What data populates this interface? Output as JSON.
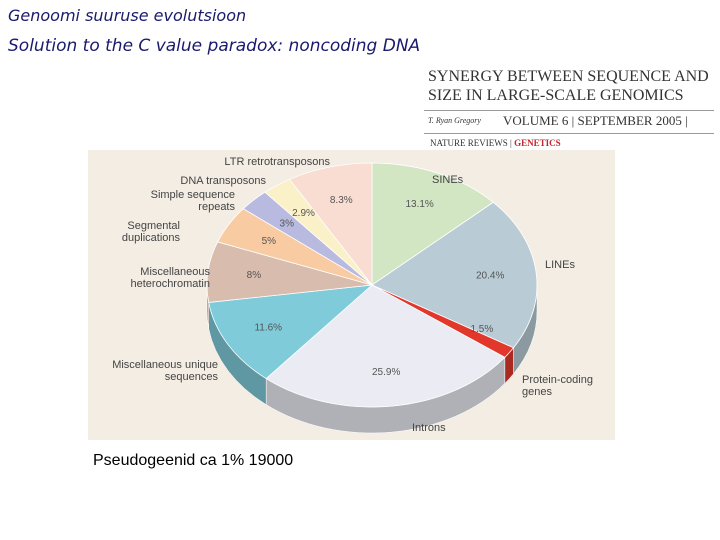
{
  "slide": {
    "title": "Genoomi suuruse evolutsioon",
    "subtitle": "Solution to the C value paradox: noncoding DNA",
    "caption": "Pseudogeenid ca 1% 19000"
  },
  "journal_header": {
    "title_line_1": "SYNERGY BETWEEN SEQUENCE AND",
    "title_line_2": "SIZE IN LARGE-SCALE GENOMICS",
    "author": "T. Ryan Gregory",
    "volume": "VOLUME 6 | SEPTEMBER 2005 |",
    "journal": "NATURE REVIEWS",
    "section": "GENETICS"
  },
  "chart_data": {
    "type": "pie",
    "categories": [
      "SINEs",
      "LINEs",
      "Protein-coding genes",
      "Introns",
      "Miscellaneous unique sequences",
      "Miscellaneous heterochromatin",
      "Segmental duplications",
      "Simple sequence repeats",
      "DNA transposons",
      "LTR retrotransposons"
    ],
    "values": [
      13.1,
      20.4,
      1.5,
      25.9,
      11.6,
      8,
      5,
      3,
      2.9,
      8.3
    ],
    "value_labels": [
      "13.1%",
      "20.4%",
      "1.5%",
      "25.9%",
      "11.6%",
      "8%",
      "5%",
      "3%",
      "2.9%",
      "8.3%"
    ],
    "colors": [
      "#d3e6c4",
      "#b9ccd6",
      "#e2372b",
      "#ebebf4",
      "#7fcbd9",
      "#d8bcae",
      "#f9cba3",
      "#b8badf",
      "#fbf1c9",
      "#f9ddd2"
    ]
  }
}
